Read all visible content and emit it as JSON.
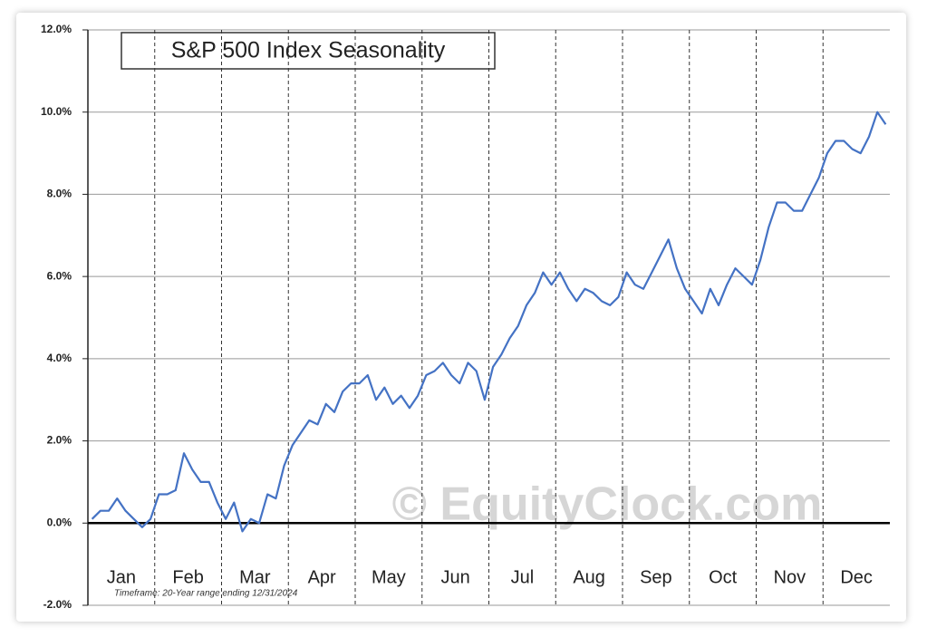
{
  "chart_data": {
    "type": "line",
    "title": "S&P 500 Index Seasonality",
    "footnote": "Timeframe: 20-Year range ending 12/31/2024",
    "watermark": "© EquityClock.com",
    "months": [
      "Jan",
      "Feb",
      "Mar",
      "Apr",
      "May",
      "Jun",
      "Jul",
      "Aug",
      "Sep",
      "Oct",
      "Nov",
      "Dec"
    ],
    "color": "#4472c4",
    "values": [
      0.1,
      0.3,
      0.3,
      0.6,
      0.3,
      0.1,
      -0.1,
      0.1,
      0.7,
      0.7,
      0.8,
      1.7,
      1.3,
      1.0,
      1.0,
      0.5,
      0.1,
      0.5,
      -0.2,
      0.1,
      0.0,
      0.7,
      0.6,
      1.4,
      1.9,
      2.2,
      2.5,
      2.4,
      2.9,
      2.7,
      3.2,
      3.4,
      3.4,
      3.6,
      3.0,
      3.3,
      2.9,
      3.1,
      2.8,
      3.1,
      3.6,
      3.7,
      3.9,
      3.6,
      3.4,
      3.9,
      3.7,
      3.0,
      3.8,
      4.1,
      4.5,
      4.8,
      5.3,
      5.6,
      6.1,
      5.8,
      6.1,
      5.7,
      5.4,
      5.7,
      5.6,
      5.4,
      5.3,
      5.5,
      6.1,
      5.8,
      5.7,
      6.1,
      6.5,
      6.9,
      6.2,
      5.7,
      5.4,
      5.1,
      5.7,
      5.3,
      5.8,
      6.2,
      6.0,
      5.8,
      6.4,
      7.2,
      7.8,
      7.8,
      7.6,
      7.6,
      8.0,
      8.4,
      9.0,
      9.3,
      9.3,
      9.1,
      9.0,
      9.4,
      10.0,
      9.7
    ],
    "ylim": [
      -2,
      12
    ],
    "yticks": [
      {
        "value": -2,
        "label": "-2.0%"
      },
      {
        "value": 0,
        "label": "0.0%"
      },
      {
        "value": 2,
        "label": "2.0%"
      },
      {
        "value": 4,
        "label": "4.0%"
      },
      {
        "value": 6,
        "label": "6.0%"
      },
      {
        "value": 8,
        "label": "8.0%"
      },
      {
        "value": 10,
        "label": "10.0%"
      },
      {
        "value": 12,
        "label": "12.0%"
      }
    ],
    "grid": true
  }
}
